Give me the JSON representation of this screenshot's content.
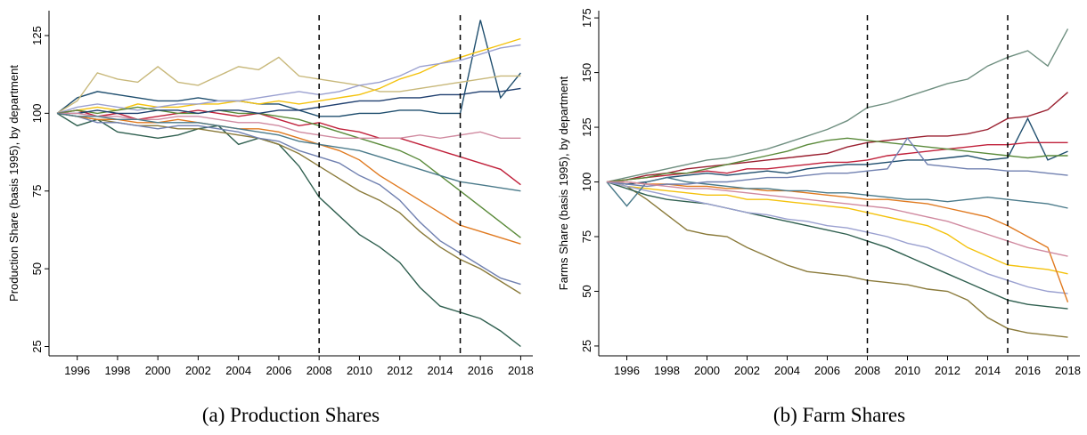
{
  "chart_data": [
    {
      "type": "line",
      "caption": "(a) Production Shares",
      "ylabel": "Production Share (basis 1995), by department",
      "x": [
        1995,
        1996,
        1997,
        1998,
        1999,
        2000,
        2001,
        2002,
        2003,
        2004,
        2005,
        2006,
        2007,
        2008,
        2009,
        2010,
        2011,
        2012,
        2013,
        2014,
        2015,
        2016,
        2017,
        2018
      ],
      "xlim": [
        1994.6,
        2018.6
      ],
      "xticks": [
        1996,
        1998,
        2000,
        2002,
        2004,
        2006,
        2008,
        2010,
        2012,
        2014,
        2016,
        2018
      ],
      "ylim": [
        22,
        133
      ],
      "yticks": [
        25,
        50,
        75,
        100,
        125
      ],
      "vlines": [
        2008,
        2015
      ],
      "series": [
        {
          "color": "#2f5f4f",
          "values": [
            100,
            96,
            98,
            94,
            93,
            92,
            93,
            95,
            96,
            90,
            92,
            90,
            83,
            73,
            67,
            61,
            57,
            52,
            44,
            38,
            36,
            34,
            30,
            25
          ]
        },
        {
          "color": "#1f4e6e",
          "values": [
            100,
            105,
            107,
            106,
            105,
            104,
            104,
            105,
            104,
            104,
            103,
            103,
            101,
            99,
            99,
            100,
            100,
            101,
            101,
            100,
            100,
            130,
            105,
            113
          ]
        },
        {
          "color": "#c8b87a",
          "values": [
            100,
            104,
            113,
            111,
            110,
            115,
            110,
            109,
            112,
            115,
            114,
            118,
            112,
            111,
            110,
            109,
            107,
            107,
            108,
            109,
            110,
            111,
            112,
            112
          ]
        },
        {
          "color": "#f4c20d",
          "values": [
            100,
            101,
            102,
            101,
            103,
            102,
            102,
            103,
            103,
            104,
            103,
            104,
            103,
            104,
            105,
            106,
            108,
            111,
            113,
            116,
            118,
            120,
            122,
            124
          ]
        },
        {
          "color": "#9aa0d0",
          "values": [
            100,
            102,
            103,
            102,
            101,
            102,
            103,
            103,
            104,
            104,
            105,
            106,
            107,
            106,
            107,
            109,
            110,
            112,
            115,
            116,
            117,
            119,
            121,
            122
          ]
        },
        {
          "color": "#8a7a3a",
          "values": [
            100,
            99,
            98,
            97,
            96,
            96,
            95,
            95,
            94,
            93,
            92,
            90,
            87,
            83,
            79,
            75,
            72,
            68,
            62,
            57,
            53,
            50,
            46,
            42
          ]
        },
        {
          "color": "#7080b0",
          "values": [
            100,
            99,
            97,
            97,
            96,
            95,
            96,
            96,
            95,
            94,
            92,
            91,
            88,
            86,
            84,
            80,
            77,
            72,
            65,
            59,
            55,
            51,
            47,
            45
          ]
        },
        {
          "color": "#c0203a",
          "values": [
            100,
            101,
            99,
            100,
            98,
            99,
            100,
            101,
            100,
            99,
            100,
            98,
            96,
            97,
            95,
            94,
            92,
            92,
            90,
            88,
            86,
            84,
            82,
            77
          ]
        },
        {
          "color": "#e07a20",
          "values": [
            100,
            99,
            98,
            98,
            97,
            97,
            98,
            97,
            96,
            95,
            95,
            94,
            92,
            90,
            88,
            85,
            80,
            76,
            72,
            68,
            64,
            62,
            60,
            58
          ]
        },
        {
          "color": "#5a8a3a",
          "values": [
            100,
            101,
            100,
            101,
            102,
            101,
            100,
            100,
            101,
            100,
            100,
            99,
            98,
            96,
            94,
            92,
            90,
            88,
            85,
            80,
            75,
            70,
            65,
            60
          ]
        },
        {
          "color": "#1f3f6f",
          "values": [
            100,
            100,
            101,
            100,
            100,
            101,
            101,
            100,
            101,
            101,
            100,
            101,
            101,
            102,
            103,
            104,
            104,
            105,
            105,
            106,
            106,
            107,
            107,
            108
          ]
        },
        {
          "color": "#d08aa0",
          "values": [
            100,
            100,
            99,
            99,
            98,
            98,
            99,
            99,
            98,
            97,
            97,
            96,
            94,
            93,
            92,
            92,
            92,
            92,
            93,
            92,
            93,
            94,
            92,
            92
          ]
        },
        {
          "color": "#4a7a8a",
          "values": [
            100,
            99,
            99,
            98,
            98,
            97,
            97,
            97,
            96,
            95,
            94,
            93,
            91,
            90,
            89,
            88,
            86,
            84,
            82,
            80,
            78,
            77,
            76,
            75
          ]
        }
      ]
    },
    {
      "type": "line",
      "caption": "(b) Farm Shares",
      "ylabel": "Farms Share (basis 1995), by department",
      "x": [
        1995,
        1996,
        1997,
        1998,
        1999,
        2000,
        2001,
        2002,
        2003,
        2004,
        2005,
        2006,
        2007,
        2008,
        2009,
        2010,
        2011,
        2012,
        2013,
        2014,
        2015,
        2016,
        2017,
        2018
      ],
      "xlim": [
        1994.6,
        2018.6
      ],
      "xticks": [
        1996,
        1998,
        2000,
        2002,
        2004,
        2006,
        2008,
        2010,
        2012,
        2014,
        2016,
        2018
      ],
      "ylim": [
        20.5,
        178.3
      ],
      "yticks": [
        25,
        50,
        75,
        100,
        125,
        150,
        175
      ],
      "vlines": [
        2008,
        2015
      ],
      "series": [
        {
          "color": "#6f8f80",
          "values": [
            100,
            102,
            104,
            106,
            108,
            110,
            111,
            113,
            115,
            118,
            121,
            124,
            128,
            134,
            136,
            139,
            142,
            145,
            147,
            153,
            157,
            160,
            153,
            170
          ]
        },
        {
          "color": "#9a2030",
          "values": [
            100,
            101,
            103,
            104,
            106,
            107,
            108,
            109,
            110,
            111,
            112,
            113,
            116,
            118,
            119,
            120,
            121,
            121,
            122,
            124,
            129,
            130,
            133,
            141
          ]
        },
        {
          "color": "#8a7a3a",
          "values": [
            100,
            98,
            92,
            85,
            78,
            76,
            75,
            70,
            66,
            62,
            59,
            58,
            57,
            55,
            54,
            53,
            51,
            50,
            46,
            38,
            33,
            31,
            30,
            29
          ]
        },
        {
          "color": "#1f4e6e",
          "values": [
            100,
            99,
            100,
            102,
            103,
            104,
            103,
            104,
            105,
            104,
            106,
            107,
            108,
            108,
            109,
            110,
            110,
            111,
            112,
            110,
            111,
            129,
            110,
            114
          ]
        },
        {
          "color": "#f4c20d",
          "values": [
            100,
            98,
            97,
            96,
            95,
            94,
            94,
            92,
            92,
            91,
            90,
            89,
            88,
            86,
            84,
            82,
            80,
            76,
            70,
            66,
            62,
            61,
            60,
            58
          ]
        },
        {
          "color": "#2f5f4f",
          "values": [
            100,
            97,
            94,
            92,
            91,
            90,
            88,
            86,
            84,
            82,
            80,
            78,
            76,
            73,
            70,
            66,
            62,
            58,
            54,
            50,
            46,
            44,
            43,
            42
          ]
        },
        {
          "color": "#c0203a",
          "values": [
            100,
            101,
            102,
            103,
            104,
            105,
            104,
            106,
            106,
            107,
            108,
            109,
            109,
            110,
            112,
            113,
            114,
            115,
            116,
            117,
            117,
            118,
            118,
            118
          ]
        },
        {
          "color": "#9aa0d0",
          "values": [
            100,
            98,
            96,
            94,
            92,
            90,
            88,
            86,
            85,
            83,
            82,
            80,
            79,
            77,
            75,
            72,
            70,
            66,
            62,
            58,
            55,
            52,
            50,
            49
          ]
        },
        {
          "color": "#e07a20",
          "values": [
            100,
            100,
            99,
            99,
            98,
            98,
            97,
            97,
            96,
            96,
            95,
            94,
            93,
            92,
            92,
            91,
            90,
            88,
            86,
            84,
            80,
            75,
            70,
            45
          ]
        },
        {
          "color": "#5a8a3a",
          "values": [
            100,
            101,
            102,
            104,
            104,
            106,
            108,
            110,
            112,
            114,
            117,
            119,
            120,
            119,
            118,
            117,
            116,
            115,
            114,
            113,
            112,
            111,
            112,
            112
          ]
        },
        {
          "color": "#4a7a8a",
          "values": [
            100,
            89,
            100,
            102,
            100,
            99,
            98,
            97,
            97,
            96,
            96,
            95,
            95,
            94,
            93,
            92,
            92,
            91,
            92,
            93,
            92,
            91,
            90,
            88
          ]
        },
        {
          "color": "#7080b0",
          "values": [
            100,
            99,
            98,
            99,
            99,
            100,
            100,
            101,
            102,
            102,
            103,
            104,
            104,
            105,
            106,
            120,
            108,
            107,
            106,
            106,
            105,
            105,
            104,
            103
          ]
        },
        {
          "color": "#d08aa0",
          "values": [
            100,
            100,
            99,
            98,
            97,
            97,
            96,
            95,
            94,
            93,
            92,
            91,
            90,
            89,
            88,
            86,
            84,
            82,
            79,
            76,
            73,
            70,
            68,
            66
          ]
        }
      ]
    }
  ]
}
